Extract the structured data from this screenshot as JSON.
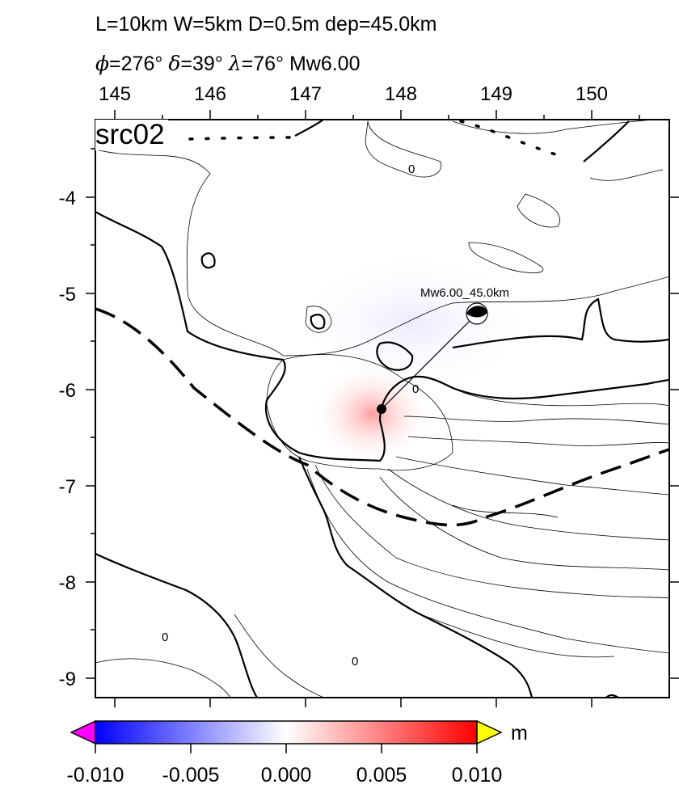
{
  "header": {
    "line1": "L=10km W=5km D=0.5m dep=45.0km",
    "strike_label": "=276°",
    "dip_label": "=39°",
    "rake_label": "=76°",
    "mw_label": "Mw6.00"
  },
  "map": {
    "source_id": "src02",
    "event_label": "Mw6.00_45.0km",
    "x_ticks": [
      "145",
      "146",
      "147",
      "148",
      "149",
      "150"
    ],
    "y_ticks": [
      "-4",
      "-5",
      "-6",
      "-7",
      "-8",
      "-9"
    ],
    "contour_labels": [
      "0",
      "0",
      "0",
      "0"
    ]
  },
  "colorbar": {
    "unit": "m",
    "ticks": [
      "-0.010",
      "-0.005",
      "0.000",
      "0.005",
      "0.010"
    ],
    "colors": {
      "min": "#0000ff",
      "mid": "#ffffff",
      "max": "#ff0000",
      "under": "#ff00ff",
      "over": "#ffff00"
    }
  }
}
